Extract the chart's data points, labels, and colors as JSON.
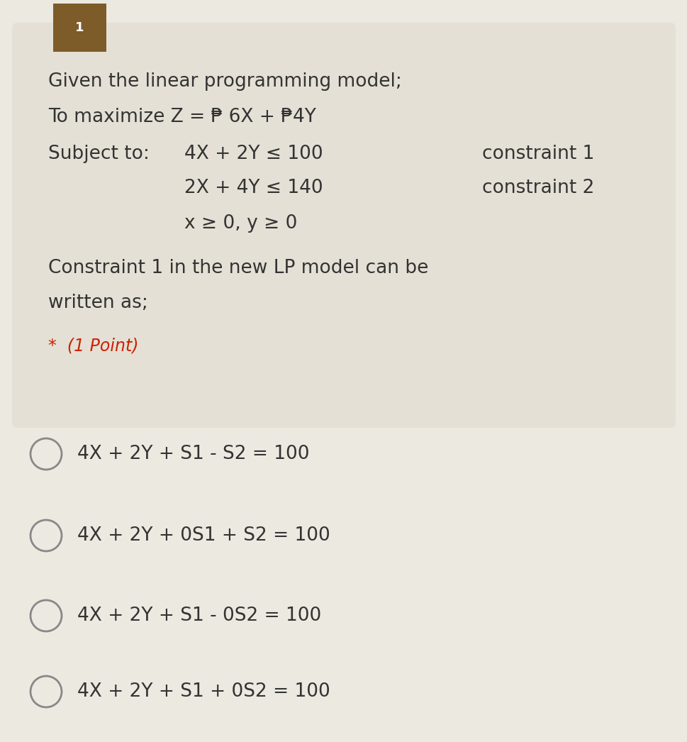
{
  "outer_bg_color": "#ece9e1",
  "question_box_color": "#e5e0d5",
  "brown_marker_color": "#7d5c2a",
  "text_color": "#333333",
  "red_color": "#cc2200",
  "circle_edge_color": "#888888",
  "line1": "Given the linear programming model;",
  "line2": "To maximize Z = ₱ 6X + ₱4Y",
  "line3_label": "Subject to:",
  "line3_eq": "4X + 2Y ≤ 100",
  "line3_right": "constraint 1",
  "line4_eq": "2X + 4Y ≤ 140",
  "line4_right": "constraint 2",
  "line5_eq": "x ≥ 0, y ≥ 0",
  "question_line1": "Constraint 1 in the new LP model can be",
  "question_line2": "written as;",
  "point_label": "*  (1 Point)",
  "options": [
    "4X + 2Y + S1 - S2 = 100",
    "4X + 2Y + 0S1 + S2 = 100",
    "4X + 2Y + S1 - 0S2 = 100",
    "4X + 2Y + S1 + 0S2 = 100"
  ],
  "font_size_main": 19,
  "font_size_options": 19,
  "font_size_point": 17,
  "fig_width": 9.69,
  "fig_height": 10.46,
  "dpi": 100
}
